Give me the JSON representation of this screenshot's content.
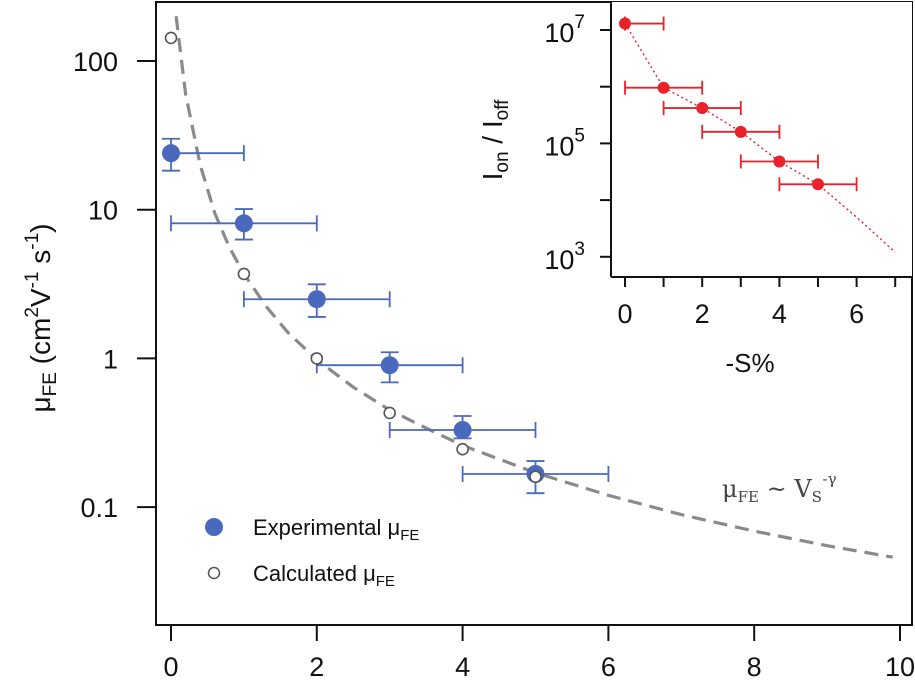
{
  "colors": {
    "experimental": "#4a69bd",
    "calculated_stroke": "#555555",
    "fit_curve": "#8a8a8a",
    "inset": "#e8222a",
    "axis": "#111111"
  },
  "chart_data": [
    {
      "id": "main",
      "type": "scatter",
      "title": "",
      "xlabel": "",
      "ylabel_parts": {
        "mu": "μ",
        "sub": "FE",
        "unit_open": " (cm",
        "sup1": "2",
        "v": "V",
        "sup2": "-1",
        "s": " s",
        "sup3": "-1",
        "close": ")"
      },
      "yscale": "log",
      "xlim": [
        0,
        10
      ],
      "ylim_log10": [
        -1.8,
        2.35
      ],
      "x_ticks": [
        0,
        2,
        4,
        6,
        8,
        10
      ],
      "x_tick_labels": [
        "0",
        "2",
        "4",
        "6",
        "8",
        "10"
      ],
      "y_ticks": [
        100,
        10,
        1,
        0.1
      ],
      "y_tick_labels": [
        "100",
        "10",
        "1",
        "0.1"
      ],
      "grid": false,
      "legend": {
        "placement": "bottom-left",
        "entries": [
          {
            "label": "Experimental μ",
            "sub": "FE",
            "marker": "filled-circle"
          },
          {
            "label": "Calculated μ",
            "sub": "FE",
            "marker": "open-circle"
          }
        ]
      },
      "annotation": {
        "mu": "μ",
        "sub": "FE",
        "sim": " ~ V",
        "vsub": "S",
        "sup": "-γ"
      },
      "series": [
        {
          "name": "Experimental μFE",
          "marker": "filled-circle",
          "points": [
            {
              "x": 0,
              "y": 24,
              "y_lo": 18.3,
              "y_hi": 30,
              "x_lo": 0,
              "x_hi": 1
            },
            {
              "x": 1,
              "y": 8.1,
              "y_lo": 6.3,
              "y_hi": 10.1,
              "x_lo": 0,
              "x_hi": 2
            },
            {
              "x": 2,
              "y": 2.5,
              "y_lo": 1.9,
              "y_hi": 3.15,
              "x_lo": 1,
              "x_hi": 3
            },
            {
              "x": 3,
              "y": 0.9,
              "y_lo": 0.69,
              "y_hi": 1.1,
              "x_lo": 2,
              "x_hi": 4
            },
            {
              "x": 4,
              "y": 0.33,
              "y_lo": 0.29,
              "y_hi": 0.41,
              "x_lo": 3,
              "x_hi": 5
            },
            {
              "x": 5,
              "y": 0.167,
              "y_lo": 0.124,
              "y_hi": 0.204,
              "x_lo": 4,
              "x_hi": 6
            }
          ]
        },
        {
          "name": "Calculated μFE",
          "marker": "open-circle",
          "points": [
            {
              "x": 0,
              "y": 143
            },
            {
              "x": 1,
              "y": 3.7
            },
            {
              "x": 2,
              "y": 1.0
            },
            {
              "x": 3,
              "y": 0.43
            },
            {
              "x": 4,
              "y": 0.245
            },
            {
              "x": 5,
              "y": 0.16
            }
          ]
        },
        {
          "name": "Power-law fit μFE ~ VS^-γ",
          "style": "dashed",
          "points": [
            {
              "x": 0.07,
              "y": 200
            },
            {
              "x": 0.2,
              "y": 60
            },
            {
              "x": 0.4,
              "y": 20
            },
            {
              "x": 0.6,
              "y": 9.5
            },
            {
              "x": 0.8,
              "y": 5.6
            },
            {
              "x": 1.0,
              "y": 3.7
            },
            {
              "x": 1.3,
              "y": 2.25
            },
            {
              "x": 1.6,
              "y": 1.5
            },
            {
              "x": 2.0,
              "y": 0.98
            },
            {
              "x": 2.5,
              "y": 0.64
            },
            {
              "x": 3.0,
              "y": 0.45
            },
            {
              "x": 3.5,
              "y": 0.34
            },
            {
              "x": 4.0,
              "y": 0.26
            },
            {
              "x": 5.0,
              "y": 0.17
            },
            {
              "x": 6.0,
              "y": 0.12
            },
            {
              "x": 7.0,
              "y": 0.089
            },
            {
              "x": 8.0,
              "y": 0.069
            },
            {
              "x": 9.0,
              "y": 0.055
            },
            {
              "x": 9.9,
              "y": 0.046
            }
          ]
        }
      ]
    },
    {
      "id": "inset",
      "type": "scatter",
      "title": "",
      "xlabel": "-S%",
      "ylabel_parts": {
        "i1": "I",
        "sub1": "on",
        "slash": " / ",
        "i2": "I",
        "sub2": "off"
      },
      "yscale": "log",
      "xlim": [
        -0.35,
        7.35
      ],
      "ylim_log10": [
        2.6,
        7.5
      ],
      "x_ticks": [
        0,
        1,
        2,
        3,
        4,
        5,
        6,
        7
      ],
      "x_tick_labels": [
        "0",
        "2",
        "4",
        "6"
      ],
      "x_labeled_ticks": [
        0,
        2,
        4,
        6
      ],
      "y_ticks_log10": [
        7,
        6,
        5,
        4,
        3
      ],
      "y_tick_labels": [
        {
          "base": "10",
          "exp": "7",
          "at": 7
        },
        {
          "base": "10",
          "exp": "5",
          "at": 5
        },
        {
          "base": "10",
          "exp": "3",
          "at": 3
        }
      ],
      "grid": false,
      "series": [
        {
          "name": "Ion/Ioff",
          "marker": "filled-circle",
          "points": [
            {
              "x": 0,
              "y": 13000000.0,
              "x_lo": 0,
              "x_hi": 1
            },
            {
              "x": 1,
              "y": 960000.0,
              "x_lo": 0,
              "x_hi": 2
            },
            {
              "x": 2,
              "y": 420000.0,
              "x_lo": 1,
              "x_hi": 3
            },
            {
              "x": 3,
              "y": 160000.0,
              "x_lo": 2,
              "x_hi": 4
            },
            {
              "x": 4,
              "y": 48000.0,
              "x_lo": 3,
              "x_hi": 5
            },
            {
              "x": 5,
              "y": 19000.0,
              "x_lo": 4,
              "x_hi": 6
            }
          ]
        },
        {
          "name": "fit",
          "style": "dotted",
          "points": [
            {
              "x": 0,
              "y": 13000000.0
            },
            {
              "x": 1,
              "y": 960000.0
            },
            {
              "x": 2,
              "y": 420000.0
            },
            {
              "x": 3,
              "y": 160000.0
            },
            {
              "x": 4,
              "y": 48000.0
            },
            {
              "x": 5,
              "y": 19000.0
            },
            {
              "x": 6,
              "y": 5000.0
            },
            {
              "x": 7,
              "y": 1200.0
            }
          ]
        }
      ]
    }
  ]
}
